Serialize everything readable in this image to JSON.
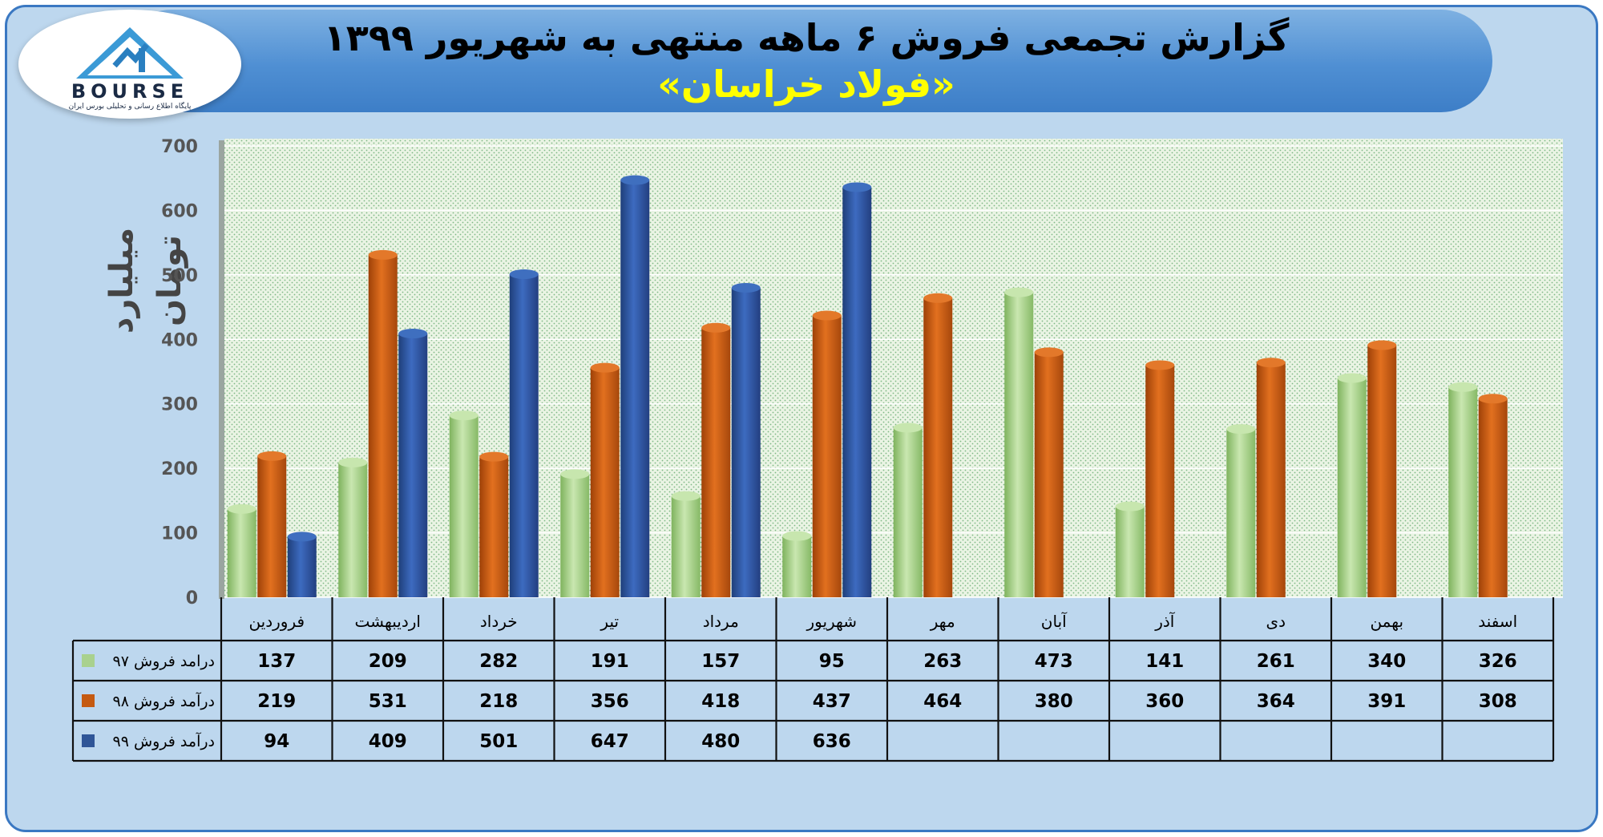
{
  "header": {
    "title": "گزارش تجمعی فروش ۶ ماهه منتهی به شهریور ۱۳۹۹",
    "subtitle": "«فولاد خراسان»"
  },
  "logo": {
    "word": "BOURSE",
    "tagline": "پایگاه اطلاع رسانی و تحلیلی بورس ایران"
  },
  "colors": {
    "background": "#bdd7ee",
    "plot_area": "#e2efda",
    "series_97": "#a9d18e",
    "series_98": "#c55a11",
    "series_99": "#2f5597",
    "title_text": "#000000",
    "subtitle_text": "#ffff00"
  },
  "chart_data": {
    "type": "bar",
    "ylabel": "میلیارد تومان",
    "ylim": [
      0,
      700
    ],
    "yticks": [
      0,
      100,
      200,
      300,
      400,
      500,
      600,
      700
    ],
    "grid": true,
    "categories": [
      "فروردین",
      "اردیبهشت",
      "خرداد",
      "تیر",
      "مرداد",
      "شهریور",
      "مهر",
      "آبان",
      "آذر",
      "دی",
      "بهمن",
      "اسفند"
    ],
    "series": [
      {
        "name": "درامد فروش ۹۷",
        "values": [
          137,
          209,
          282,
          191,
          157,
          95,
          263,
          473,
          141,
          261,
          340,
          326
        ]
      },
      {
        "name": "درآمد فروش ۹۸",
        "values": [
          219,
          531,
          218,
          356,
          418,
          437,
          464,
          380,
          360,
          364,
          391,
          308
        ]
      },
      {
        "name": "درآمد فروش ۹۹",
        "values": [
          94,
          409,
          501,
          647,
          480,
          636,
          null,
          null,
          null,
          null,
          null,
          null
        ]
      }
    ]
  }
}
